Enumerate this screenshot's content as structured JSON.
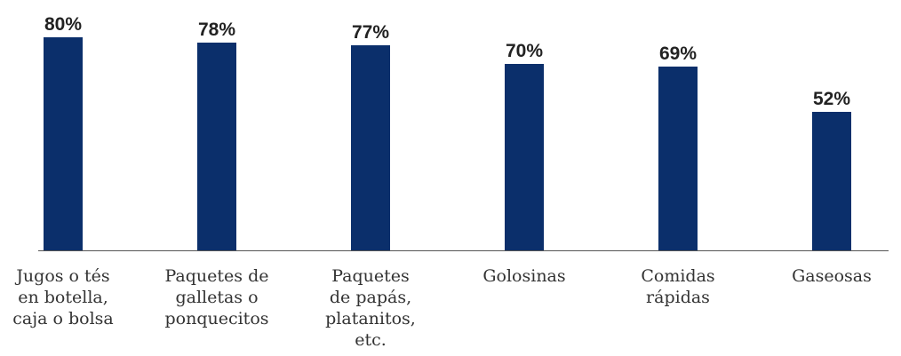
{
  "chart_data": {
    "type": "bar",
    "categories": [
      [
        "Jugos o tés",
        "en botella,",
        "caja o bolsa"
      ],
      [
        "Paquetes de",
        "galletas o",
        "ponquecitos"
      ],
      [
        "Paquetes",
        "de papás,",
        "platanitos,",
        "etc."
      ],
      [
        "Golosinas"
      ],
      [
        "Comidas",
        "rápidas"
      ],
      [
        "Gaseosas"
      ]
    ],
    "values": [
      80,
      78,
      77,
      70,
      69,
      52
    ],
    "value_labels": [
      "80%",
      "78%",
      "77%",
      "70%",
      "69%",
      "52%"
    ],
    "unit": "%",
    "ylim": [
      0,
      100
    ],
    "grid": false,
    "colors": {
      "bar": "#0b2f6b",
      "axis": "#555555"
    }
  }
}
